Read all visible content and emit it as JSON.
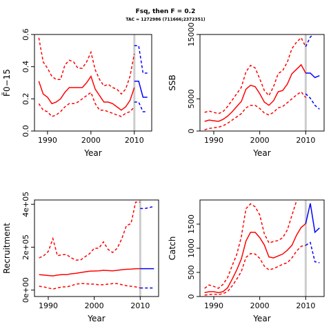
{
  "title": "Fsq, then F = 0.2",
  "subtitle": "TAC = 1272986 (711666;2372351)",
  "chart_data": [
    {
      "type": "line",
      "ylabel": "F̄0−15",
      "xlabel": "Year",
      "xlim": [
        1987,
        2014
      ],
      "ylim": [
        0,
        0.6
      ],
      "xticks": [
        1990,
        2000,
        2010
      ],
      "yticks": [
        0.0,
        0.2,
        0.4,
        0.6
      ],
      "ytick_labels": [
        "0.0",
        "0.2",
        "0.4",
        "0.6"
      ],
      "vline": 2010,
      "hist_x": [
        1988,
        1989,
        1990,
        1991,
        1992,
        1993,
        1994,
        1995,
        1996,
        1997,
        1998,
        1999,
        2000,
        2001,
        2002,
        2003,
        2004,
        2005,
        2006,
        2007,
        2008,
        2009,
        2010
      ],
      "hist_median": [
        0.31,
        0.23,
        0.21,
        0.17,
        0.18,
        0.2,
        0.24,
        0.27,
        0.27,
        0.27,
        0.27,
        0.3,
        0.34,
        0.26,
        0.22,
        0.18,
        0.18,
        0.17,
        0.15,
        0.13,
        0.15,
        0.19,
        0.27
      ],
      "hist_upper": [
        0.58,
        0.43,
        0.39,
        0.34,
        0.32,
        0.32,
        0.41,
        0.44,
        0.43,
        0.39,
        0.39,
        0.43,
        0.49,
        0.38,
        0.32,
        0.28,
        0.29,
        0.27,
        0.26,
        0.23,
        0.26,
        0.34,
        0.48
      ],
      "hist_lower": [
        0.17,
        0.13,
        0.12,
        0.09,
        0.1,
        0.12,
        0.15,
        0.17,
        0.17,
        0.18,
        0.2,
        0.22,
        0.24,
        0.17,
        0.13,
        0.13,
        0.12,
        0.11,
        0.1,
        0.09,
        0.11,
        0.12,
        0.15
      ],
      "proj_x": [
        2010,
        2011,
        2012,
        2013
      ],
      "proj_median": [
        0.31,
        0.31,
        0.21,
        0.21
      ],
      "proj_upper": [
        0.53,
        0.53,
        0.36,
        0.36
      ],
      "proj_lower": [
        0.18,
        0.18,
        0.12,
        0.12
      ]
    },
    {
      "type": "line",
      "ylabel": "SSB",
      "xlabel": "Year",
      "xlim": [
        1987,
        2014
      ],
      "ylim": [
        0,
        15000
      ],
      "xticks": [
        1990,
        2000,
        2010
      ],
      "yticks": [
        0,
        5000,
        15000
      ],
      "ytick_labels": [
        "0",
        "5000",
        "15000"
      ],
      "vline": 2010,
      "hist_x": [
        1988,
        1989,
        1990,
        1991,
        1992,
        1993,
        1994,
        1995,
        1996,
        1997,
        1998,
        1999,
        2000,
        2001,
        2002,
        2003,
        2004,
        2005,
        2006,
        2007,
        2008,
        2009,
        2010
      ],
      "hist_median": [
        1500,
        1700,
        1600,
        1500,
        1800,
        2300,
        3000,
        3800,
        4600,
        6500,
        7100,
        6900,
        5800,
        4500,
        4000,
        4700,
        6100,
        6300,
        7300,
        8900,
        9600,
        10300,
        9000
      ],
      "hist_upper": [
        2900,
        3100,
        2900,
        2700,
        3000,
        3800,
        4800,
        5800,
        6800,
        9200,
        10200,
        9800,
        8100,
        6300,
        5500,
        6900,
        8900,
        9400,
        10700,
        12800,
        13800,
        14500,
        13100
      ],
      "hist_lower": [
        200,
        400,
        500,
        600,
        800,
        1200,
        1700,
        2200,
        2700,
        3600,
        4000,
        4000,
        3500,
        2800,
        2500,
        2900,
        3600,
        3800,
        4400,
        5000,
        5600,
        6100,
        5200
      ],
      "proj_x": [
        2010,
        2011,
        2012,
        2013
      ],
      "proj_median": [
        9000,
        9000,
        8300,
        8600
      ],
      "proj_upper": [
        13100,
        14600,
        15200,
        15300
      ],
      "proj_lower": [
        5800,
        5100,
        4000,
        3400
      ]
    },
    {
      "type": "line",
      "ylabel": "Recruitment",
      "xlabel": "Year",
      "xlim": [
        1987,
        2014
      ],
      "ylim": [
        -30000,
        420000
      ],
      "xticks": [
        1990,
        2000,
        2010
      ],
      "yticks": [
        0,
        200000,
        400000
      ],
      "ytick_labels": [
        "0e+00",
        "2e+05",
        "4e+05"
      ],
      "vline": 2010,
      "hist_x": [
        1988,
        1989,
        1990,
        1991,
        1992,
        1993,
        1994,
        1995,
        1996,
        1997,
        1998,
        1999,
        2000,
        2001,
        2002,
        2003,
        2004,
        2005,
        2006,
        2007,
        2008,
        2009,
        2010
      ],
      "hist_median": [
        72000,
        70000,
        68000,
        66000,
        70000,
        72000,
        72000,
        76000,
        78000,
        82000,
        85000,
        88000,
        89000,
        90000,
        92000,
        91000,
        90000,
        92000,
        95000,
        97000,
        98000,
        100000,
        100000
      ],
      "hist_upper": [
        150000,
        160000,
        180000,
        240000,
        160000,
        165000,
        165000,
        150000,
        140000,
        140000,
        155000,
        170000,
        195000,
        195000,
        225000,
        190000,
        175000,
        195000,
        240000,
        300000,
        310000,
        410000,
        410000
      ],
      "hist_lower": [
        18000,
        15000,
        10000,
        5000,
        10000,
        15000,
        15000,
        20000,
        28000,
        30000,
        30000,
        28000,
        28000,
        25000,
        25000,
        28000,
        30000,
        30000,
        25000,
        20000,
        18000,
        15000,
        10000
      ],
      "proj_x": [
        2010,
        2011,
        2012,
        2013
      ],
      "proj_median": [
        100000,
        100000,
        100000,
        100000
      ],
      "proj_upper": [
        380000,
        380000,
        385000,
        390000
      ],
      "proj_lower": [
        10000,
        10000,
        10000,
        10000
      ]
    },
    {
      "type": "line",
      "ylabel": "Catch",
      "xlabel": "Year",
      "xlim": [
        1987,
        2014
      ],
      "ylim": [
        0,
        2000
      ],
      "xticks": [
        1990,
        2000,
        2010
      ],
      "yticks": [
        0,
        500,
        1000,
        1500
      ],
      "ytick_labels": [
        "0",
        "500",
        "1000",
        "1500"
      ],
      "vline": 2010,
      "hist_x": [
        1988,
        1989,
        1990,
        1991,
        1992,
        1993,
        1994,
        1995,
        1996,
        1997,
        1998,
        1999,
        2000,
        2001,
        2002,
        2003,
        2004,
        2005,
        2006,
        2007,
        2008,
        2009,
        2010
      ],
      "hist_median": [
        80,
        100,
        100,
        80,
        100,
        180,
        360,
        550,
        780,
        1150,
        1330,
        1330,
        1220,
        1070,
        820,
        800,
        840,
        880,
        960,
        1060,
        1270,
        1430,
        1510
      ],
      "hist_upper": [
        170,
        240,
        210,
        170,
        250,
        390,
        640,
        870,
        1240,
        1820,
        1920,
        1860,
        1690,
        1300,
        1110,
        1140,
        1160,
        1220,
        1380,
        1680,
        1980,
        2150,
        2150
      ],
      "hist_lower": [
        30,
        40,
        50,
        40,
        60,
        100,
        220,
        360,
        520,
        810,
        890,
        880,
        790,
        630,
        550,
        580,
        620,
        670,
        700,
        800,
        940,
        1040,
        1060
      ],
      "proj_x": [
        2010,
        2011,
        2012,
        2013
      ],
      "proj_median": [
        1510,
        1930,
        1330,
        1420
      ],
      "proj_upper": [
        2150,
        2150,
        2150,
        2150
      ],
      "proj_lower": [
        1060,
        1120,
        720,
        700
      ]
    }
  ],
  "colors": {
    "historic": "#ff0000",
    "projection": "#0000ff",
    "vline": "#cccccc",
    "axis": "#000000"
  }
}
